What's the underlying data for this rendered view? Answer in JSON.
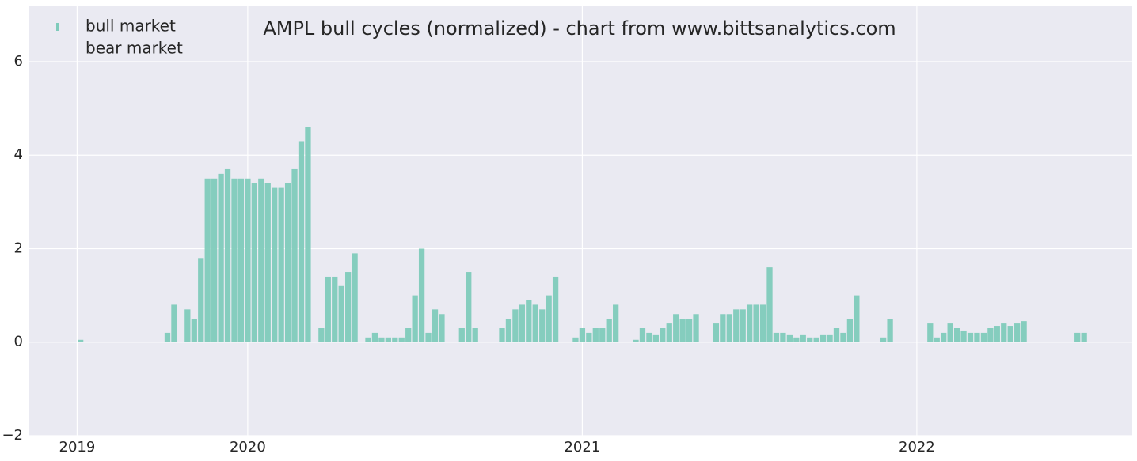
{
  "chart_data": {
    "type": "bar",
    "title": "AMPL bull cycles (normalized)  - chart from www.bittsanalytics.com",
    "x": [
      2019.5,
      2019.52,
      2019.54,
      2019.56,
      2019.58,
      2019.6,
      2019.62,
      2019.64,
      2019.66,
      2019.68,
      2019.7,
      2019.72,
      2019.74,
      2019.76,
      2019.78,
      2019.8,
      2019.82,
      2019.84,
      2019.86,
      2019.88,
      2019.9,
      2019.92,
      2019.94,
      2019.96,
      2019.98,
      2020,
      2020.02,
      2020.04,
      2020.06,
      2020.08,
      2020.1,
      2020.12,
      2020.14,
      2020.16,
      2020.18,
      2020.2,
      2020.22,
      2020.24,
      2020.26,
      2020.28,
      2020.3,
      2020.32,
      2020.34,
      2020.36,
      2020.38,
      2020.4,
      2020.42,
      2020.44,
      2020.46,
      2020.48,
      2020.5,
      2020.52,
      2020.54,
      2020.56,
      2020.58,
      2020.6,
      2020.62,
      2020.64,
      2020.66,
      2020.68,
      2020.7,
      2020.72,
      2020.74,
      2020.76,
      2020.78,
      2020.8,
      2020.82,
      2020.84,
      2020.86,
      2020.88,
      2020.9,
      2020.92,
      2020.94,
      2020.96,
      2020.98,
      2021,
      2021.02,
      2021.04,
      2021.06,
      2021.08,
      2021.1,
      2021.12,
      2021.14,
      2021.16,
      2021.18,
      2021.2,
      2021.22,
      2021.24,
      2021.26,
      2021.28,
      2021.3,
      2021.32,
      2021.34,
      2021.36,
      2021.38,
      2021.4,
      2021.42,
      2021.44,
      2021.46,
      2021.48,
      2021.5,
      2021.52,
      2021.54,
      2021.56,
      2021.58,
      2021.6,
      2021.62,
      2021.64,
      2021.66,
      2021.68,
      2021.7,
      2021.72,
      2021.74,
      2021.76,
      2021.78,
      2021.8,
      2021.82,
      2021.84,
      2021.86,
      2021.88,
      2021.9,
      2021.92,
      2021.94,
      2021.96,
      2021.98,
      2022,
      2022.02,
      2022.04,
      2022.06,
      2022.08,
      2022.1,
      2022.12,
      2022.14,
      2022.16,
      2022.18,
      2022.2,
      2022.22,
      2022.24,
      2022.26,
      2022.28,
      2022.3,
      2022.32,
      2022.34,
      2022.36,
      2022.38,
      2022.4,
      2022.42,
      2022.44,
      2022.46,
      2022.48,
      2022.5
    ],
    "series": [
      {
        "name": "bull market",
        "color": "#7fcbbb",
        "values": [
          0.05,
          0,
          0,
          0,
          0,
          0,
          0,
          0,
          0,
          0,
          0,
          0,
          0,
          0.2,
          0.8,
          0,
          0.7,
          0.5,
          1.8,
          3.5,
          3.5,
          3.6,
          3.7,
          3.5,
          3.5,
          3.5,
          3.4,
          3.5,
          3.4,
          3.3,
          3.3,
          3.4,
          3.7,
          4.3,
          4.6,
          0,
          0.3,
          1.4,
          1.4,
          1.2,
          1.5,
          1.9,
          0,
          0.1,
          0.2,
          0.1,
          0.1,
          0.1,
          0.1,
          0.3,
          1.0,
          2.0,
          0.2,
          0.7,
          0.6,
          0,
          0,
          0.3,
          1.5,
          0.3,
          0,
          0,
          0,
          0.3,
          0.5,
          0.7,
          0.8,
          0.9,
          0.8,
          0.7,
          1.0,
          1.4,
          0,
          0,
          0.1,
          0.3,
          0.2,
          0.3,
          0.3,
          0.5,
          0.8,
          0,
          0,
          0.05,
          0.3,
          0.2,
          0.15,
          0.3,
          0.4,
          0.6,
          0.5,
          0.5,
          0.6,
          0,
          0,
          0.4,
          0.6,
          0.6,
          0.7,
          0.7,
          0.8,
          0.8,
          0.8,
          1.6,
          0.2,
          0.2,
          0.15,
          0.1,
          0.15,
          0.1,
          0.1,
          0.15,
          0.15,
          0.3,
          0.2,
          0.5,
          1.0,
          0,
          0,
          0,
          0.1,
          0.5,
          0,
          0,
          0,
          0,
          0,
          0.4,
          0.1,
          0.2,
          0.4,
          0.3,
          0.25,
          0.2,
          0.2,
          0.2,
          0.3,
          0.35,
          0.4,
          0.35,
          0.4,
          0.45,
          0,
          0,
          0,
          0,
          0,
          0,
          0,
          0.2,
          0.2
        ]
      },
      {
        "name": "bear market",
        "color": "#eaeaf2"
      }
    ],
    "xlim": [
      2019.347,
      2022.644
    ],
    "xticks": [
      {
        "value": 2019.49,
        "label": "2019"
      },
      2020,
      2021,
      2022
    ],
    "ylim": [
      -2,
      7.2
    ],
    "yticks": [
      {
        "value": -2,
        "label": "−2"
      },
      0,
      2,
      4,
      6
    ],
    "grid": true,
    "legend": "upper left"
  }
}
